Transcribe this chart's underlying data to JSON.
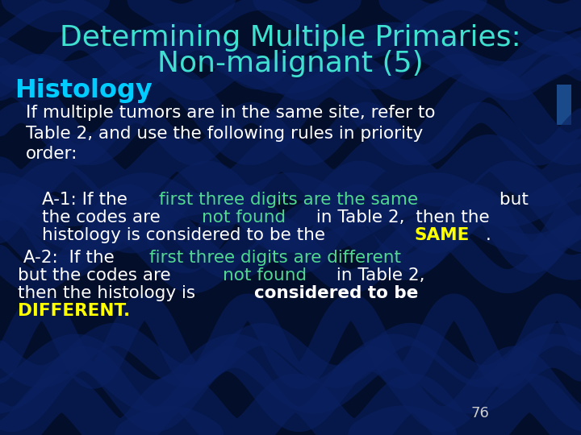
{
  "title_line1": "Determining Multiple Primaries:",
  "title_line2": "Non-malignant (5)",
  "title_color": "#40E0D0",
  "background_color": "#020E2A",
  "heading": "Histology",
  "heading_color": "#00CCFF",
  "body_color": "#FFFFFF",
  "cyan_color": "#40E0A0",
  "yellow_color": "#FFFF00",
  "page_number": "76",
  "page_number_color": "#CCCCCC",
  "wave_color": "#0A2060",
  "rect_color": "#1a4a8a"
}
